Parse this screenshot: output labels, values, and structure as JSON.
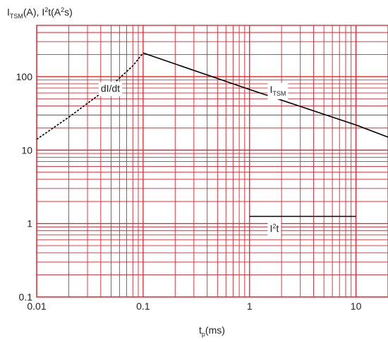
{
  "chart_data": {
    "type": "line",
    "title": "",
    "ylabel": {
      "main": "I",
      "sub": "TSM",
      "rest": "(A), I",
      "sup": "2",
      "rest2": "t(A",
      "sup2": "2",
      "rest3": "s)"
    },
    "xlabel": {
      "main": "t",
      "sub": "p",
      "rest": "(ms)"
    },
    "x_scale": "log",
    "y_scale": "log",
    "xlim": [
      0.01,
      20
    ],
    "ylim": [
      0.1,
      500
    ],
    "x_ticks": [
      {
        "value": 0.01,
        "label": "0.01"
      },
      {
        "value": 0.1,
        "label": "0.1"
      },
      {
        "value": 1,
        "label": "1"
      },
      {
        "value": 10,
        "label": "10"
      }
    ],
    "y_ticks": [
      {
        "value": 0.1,
        "label": "0.1"
      },
      {
        "value": 1,
        "label": "1"
      },
      {
        "value": 10,
        "label": "10"
      },
      {
        "value": 100,
        "label": "100"
      }
    ],
    "grid": true,
    "grid_color": "#e8212a",
    "series": [
      {
        "name": "dI/dt",
        "style": "dashed",
        "color": "#000000",
        "points": [
          [
            0.01,
            14
          ],
          [
            0.02,
            28
          ],
          [
            0.05,
            75
          ],
          [
            0.08,
            140
          ],
          [
            0.1,
            210
          ]
        ]
      },
      {
        "name": "ITSM",
        "style": "solid",
        "color": "#000000",
        "points": [
          [
            0.1,
            210
          ],
          [
            1,
            67
          ],
          [
            10,
            22
          ],
          [
            20,
            15
          ]
        ]
      },
      {
        "name": "I2t",
        "style": "solid",
        "color": "#000000",
        "points": [
          [
            1,
            1.25
          ],
          [
            10,
            1.25
          ]
        ]
      }
    ],
    "annotations": [
      {
        "id": "didt",
        "text": "dI/dt",
        "x": 0.04,
        "y": 62
      },
      {
        "id": "itsm",
        "main": "I",
        "sub": "TSM",
        "x": 1.55,
        "y": 60
      },
      {
        "id": "i2t",
        "main": "I",
        "sup": "2",
        "rest": "t",
        "x": 1.55,
        "y": 0.77
      }
    ]
  }
}
